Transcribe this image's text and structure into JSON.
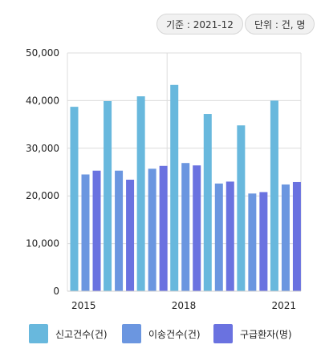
{
  "header": {
    "base_label": "기준 : 2021-12",
    "unit_label": "단위 : 건, 명"
  },
  "chart_data": {
    "type": "bar",
    "title": "",
    "xlabel": "",
    "ylabel": "",
    "ylim": [
      0,
      50000
    ],
    "yticks": [
      0,
      10000,
      20000,
      30000,
      40000,
      50000
    ],
    "ytick_labels": [
      "0",
      "10,000",
      "20,000",
      "30,000",
      "40,000",
      "50,000"
    ],
    "categories": [
      "2015",
      "2016",
      "2017",
      "2018",
      "2019",
      "2020",
      "2021"
    ],
    "x_tick_labels_shown": [
      "2015",
      "2018",
      "2021"
    ],
    "grid": true,
    "legend_position": "bottom",
    "series": [
      {
        "name": "신고건수(건)",
        "color": "#68b8dd",
        "values": [
          38700,
          39900,
          40900,
          43300,
          37200,
          34800,
          40000
        ]
      },
      {
        "name": "이송건수(건)",
        "color": "#6b96e0",
        "values": [
          24500,
          25300,
          25700,
          26900,
          22600,
          20500,
          22400
        ]
      },
      {
        "name": "구급환자(명)",
        "color": "#6a72e0",
        "values": [
          25300,
          23400,
          26300,
          26400,
          23000,
          20800,
          22900
        ]
      }
    ]
  }
}
